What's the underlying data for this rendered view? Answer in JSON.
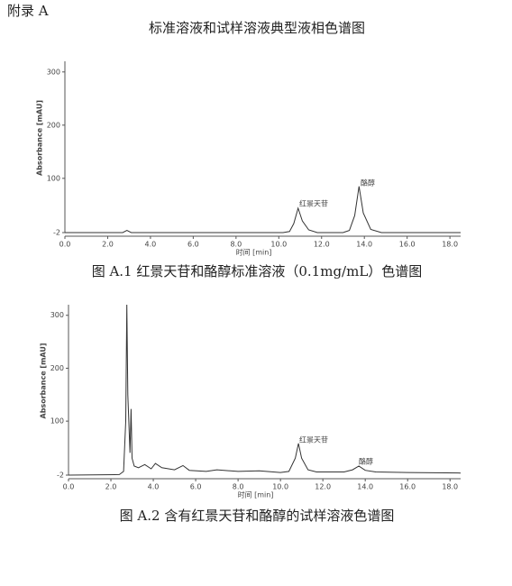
{
  "header": {
    "appendix": "附录  A",
    "title": "标准溶液和试样溶液典型液相色谱图"
  },
  "chart_data": [
    {
      "type": "line",
      "caption": "图 A.1  红景天苷和酪醇标准溶液（0.1mg/mL）色谱图",
      "x_label": "时间 [min]",
      "y_label": "Absorbance [mAU]",
      "annotations": [
        "红景天苷",
        "酪醇"
      ],
      "x": [
        0,
        2.7,
        2.9,
        3.1,
        10.2,
        10.5,
        10.7,
        10.9,
        11.1,
        11.4,
        11.8,
        13.0,
        13.3,
        13.55,
        13.75,
        13.95,
        14.3,
        14.8,
        18.5
      ],
      "series": [
        {
          "color": "#333333",
          "values": [
            -2,
            -2,
            2,
            -2,
            -2,
            0,
            15,
            44,
            20,
            3,
            -2,
            -2,
            2,
            30,
            85,
            35,
            4,
            -2,
            -2
          ]
        }
      ],
      "xlim": [
        0,
        18.5
      ],
      "ylim": [
        -2,
        320
      ],
      "xticks": [
        {
          "value": 0,
          "label": "0.0"
        },
        {
          "value": 2,
          "label": "2.0"
        },
        {
          "value": 4,
          "label": "4.0"
        },
        {
          "value": 6,
          "label": "6.0"
        },
        {
          "value": 8,
          "label": "8.0"
        },
        {
          "value": 10,
          "label": "10.0"
        },
        {
          "value": 12,
          "label": "12.0"
        },
        {
          "value": 14,
          "label": "14.0"
        },
        {
          "value": 16,
          "label": "16.0"
        },
        {
          "value": 18,
          "label": "18.0"
        }
      ],
      "yticks": [
        -2,
        100,
        200,
        300
      ]
    },
    {
      "type": "line",
      "caption": "图 A.2  含有红景天苷和酪醇的试样溶液色谱图",
      "x_label": "时间 [min]",
      "y_label": "Absorbance [mAU]",
      "annotations": [
        "红景天苷",
        "酪醇"
      ],
      "x": [
        0,
        2.4,
        2.6,
        2.7,
        2.75,
        2.8,
        2.9,
        2.95,
        3.0,
        3.1,
        3.3,
        3.6,
        3.9,
        4.1,
        4.4,
        5.0,
        5.4,
        5.7,
        6.5,
        7.0,
        8.0,
        9.0,
        10.0,
        10.4,
        10.7,
        10.85,
        11.0,
        11.3,
        11.7,
        13.0,
        13.4,
        13.7,
        14.0,
        14.5,
        16.0,
        18.5
      ],
      "series": [
        {
          "color": "#333333",
          "values": [
            -2,
            -1,
            5,
            100,
            320,
            150,
            40,
            123,
            30,
            15,
            12,
            18,
            10,
            20,
            12,
            8,
            16,
            7,
            5,
            8,
            5,
            6,
            3,
            5,
            30,
            58,
            30,
            8,
            4,
            4,
            8,
            15,
            7,
            4,
            3,
            2
          ]
        }
      ],
      "xlim": [
        0,
        18.5
      ],
      "ylim": [
        -2,
        320
      ],
      "xticks": [
        {
          "value": 0,
          "label": "0.0"
        },
        {
          "value": 2,
          "label": "2.0"
        },
        {
          "value": 4,
          "label": "4.0"
        },
        {
          "value": 6,
          "label": "6.0"
        },
        {
          "value": 8,
          "label": "8.0"
        },
        {
          "value": 10,
          "label": "10.0"
        },
        {
          "value": 12,
          "label": "12.0"
        },
        {
          "value": 14,
          "label": "14.0"
        },
        {
          "value": 16,
          "label": "16.0"
        },
        {
          "value": 18,
          "label": "18.0"
        }
      ],
      "yticks": [
        -2,
        100,
        200,
        300
      ]
    }
  ]
}
